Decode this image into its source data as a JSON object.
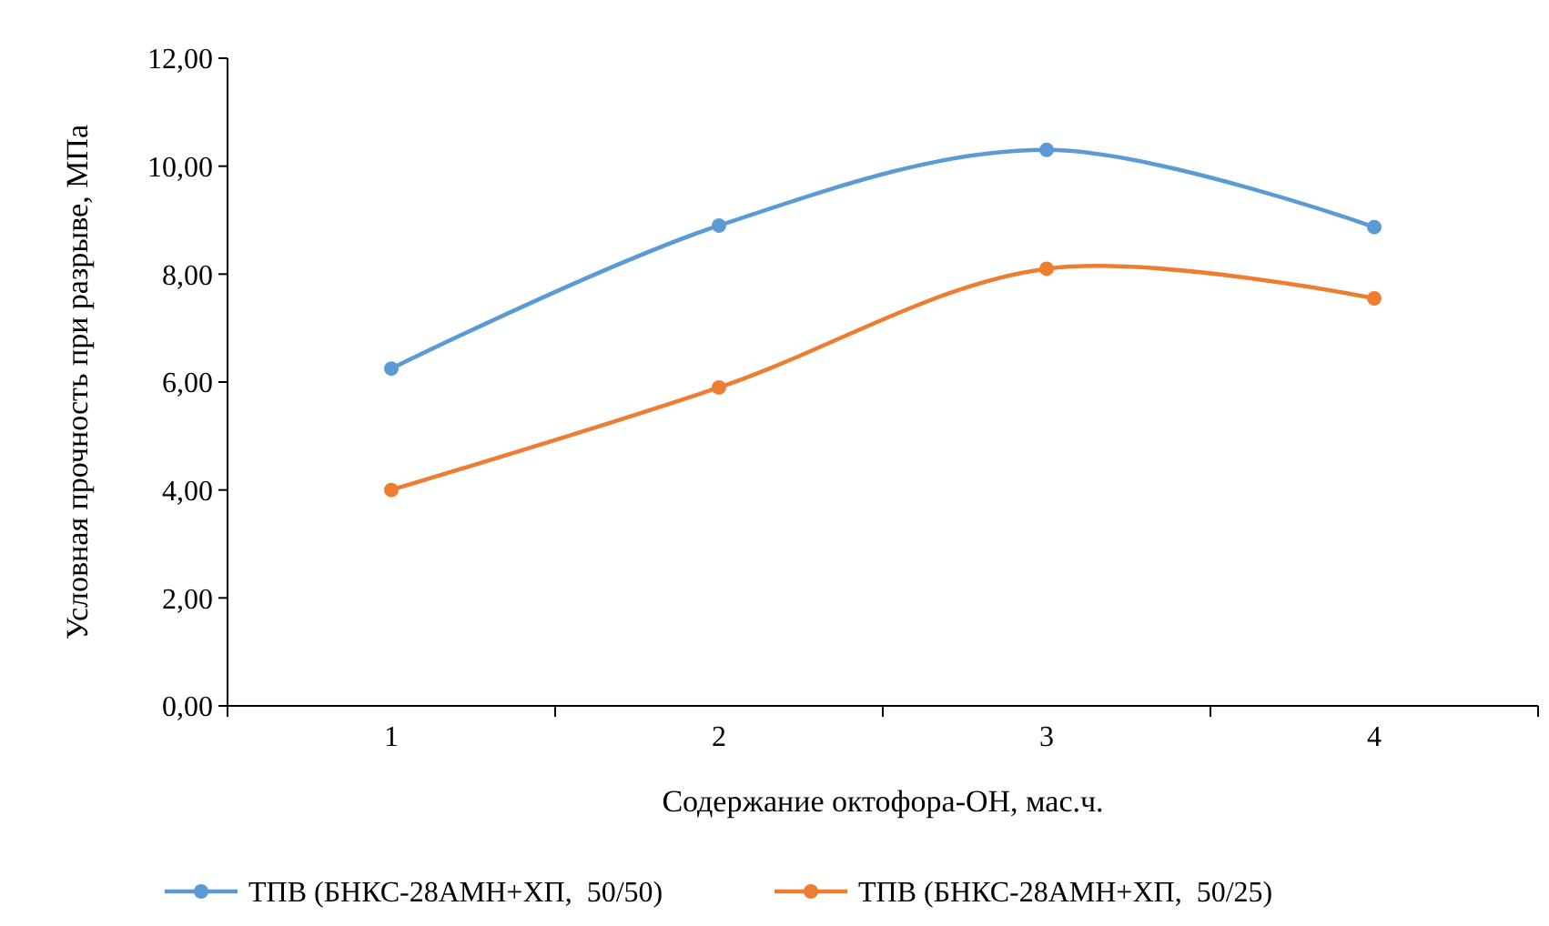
{
  "chart_data": {
    "type": "line",
    "xlabel": "Содержание октофора-ОН, мас.ч.",
    "ylabel": "Условная прочность при разрыве, МПа",
    "categories": [
      "1",
      "2",
      "3",
      "4"
    ],
    "series": [
      {
        "name": "ТПВ (БНКС-28АМН+ХП,  50/50)",
        "color": "#5b9bd5",
        "values": [
          6.25,
          8.9,
          10.3,
          8.87
        ]
      },
      {
        "name": "ТПВ (БНКС-28АМН+ХП,  50/25)",
        "color": "#ed7d31",
        "values": [
          4.0,
          5.9,
          8.1,
          7.55
        ]
      }
    ],
    "ylim": [
      0,
      12
    ],
    "yticks": [
      {
        "value": 0,
        "label": "0,00"
      },
      {
        "value": 2,
        "label": "2,00"
      },
      {
        "value": 4,
        "label": "4,00"
      },
      {
        "value": 6,
        "label": "6,00"
      },
      {
        "value": 8,
        "label": "8,00"
      },
      {
        "value": 10,
        "label": "10,00"
      },
      {
        "value": 12,
        "label": "12,00"
      }
    ],
    "grid": false,
    "legend": "bottom",
    "marker": "circle",
    "line_style": "solid"
  }
}
